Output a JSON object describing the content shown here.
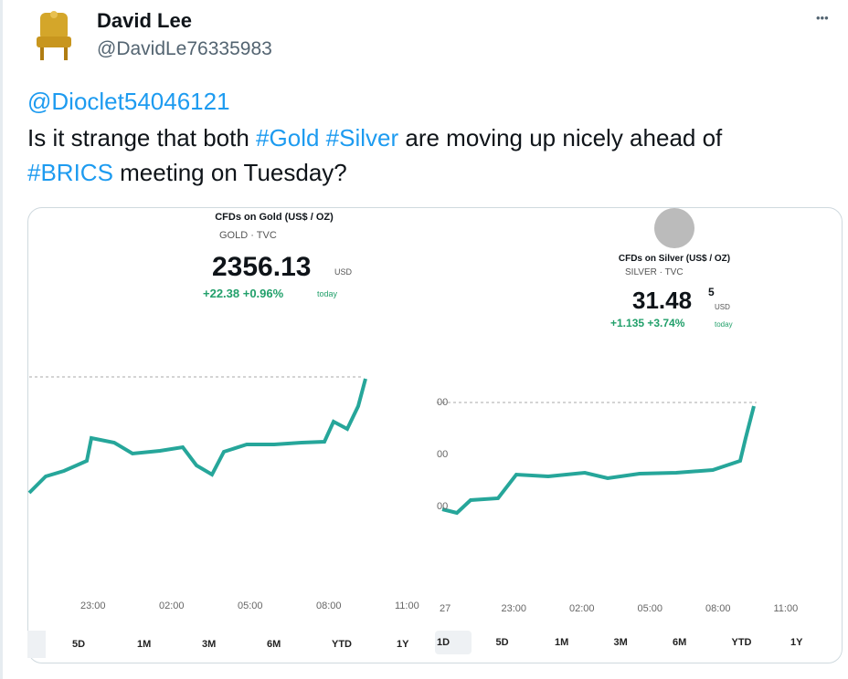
{
  "tweet": {
    "author": {
      "name": "David Lee",
      "handle": "@DavidLe76335983"
    },
    "mention": "@Dioclet54046121",
    "text": [
      "Is it strange that both ",
      "#Gold",
      " ",
      "#Silver",
      " are moving up nicely ahead of ",
      "#BRICS",
      " meeting on Tuesday?"
    ],
    "more": "•••",
    "image": {
      "gold": {
        "title": "CFDs on Gold (US$ / OZ)",
        "symbol": "GOLD",
        "source": "TVC",
        "price": "2356.13",
        "currency": "USD",
        "change": "+22.38 +0.96%",
        "period": "today",
        "x_labels": [
          "23:00",
          "02:00",
          "05:00",
          "08:00",
          "11:00"
        ],
        "ranges": [
          "5D",
          "1M",
          "3M",
          "6M",
          "YTD",
          "1Y"
        ]
      },
      "silver": {
        "title": "CFDs on Silver (US$ / OZ)",
        "symbol": "SILVER",
        "source": "TVC",
        "price": "31.48",
        "price_sup": "5",
        "currency": "USD",
        "change": "+1.135 +3.74%",
        "period": "today",
        "y_labels": [
          "00",
          "00",
          "00"
        ],
        "x_labels": [
          "27",
          "23:00",
          "02:00",
          "05:00",
          "08:00",
          "11:00"
        ],
        "ranges": [
          "1D",
          "5D",
          "1M",
          "3M",
          "6M",
          "YTD",
          "1Y"
        ]
      }
    }
  }
}
